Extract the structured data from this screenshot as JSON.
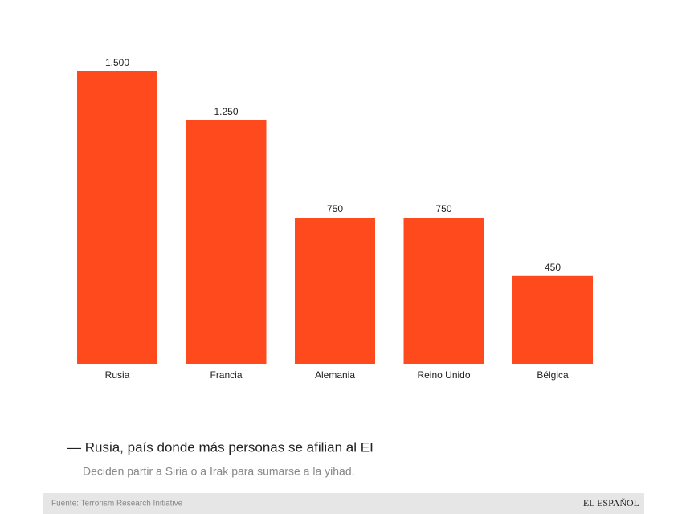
{
  "chart_data": {
    "type": "bar",
    "categories": [
      "Rusia",
      "Francia",
      "Alemania",
      "Reino Unido",
      "Bélgica"
    ],
    "values": [
      1500,
      1250,
      750,
      750,
      450
    ],
    "value_labels": [
      "1.500",
      "1.250",
      "750",
      "750",
      "450"
    ],
    "color": "#ff4a1e",
    "title": "— Rusia, país donde más personas se afilian al EI",
    "subtitle": "Deciden partir a Siria o a Irak para sumarse a la yihad.",
    "source": "Fuente: Terrorism Research Initiative",
    "brand": "EL ESPAÑOL"
  }
}
